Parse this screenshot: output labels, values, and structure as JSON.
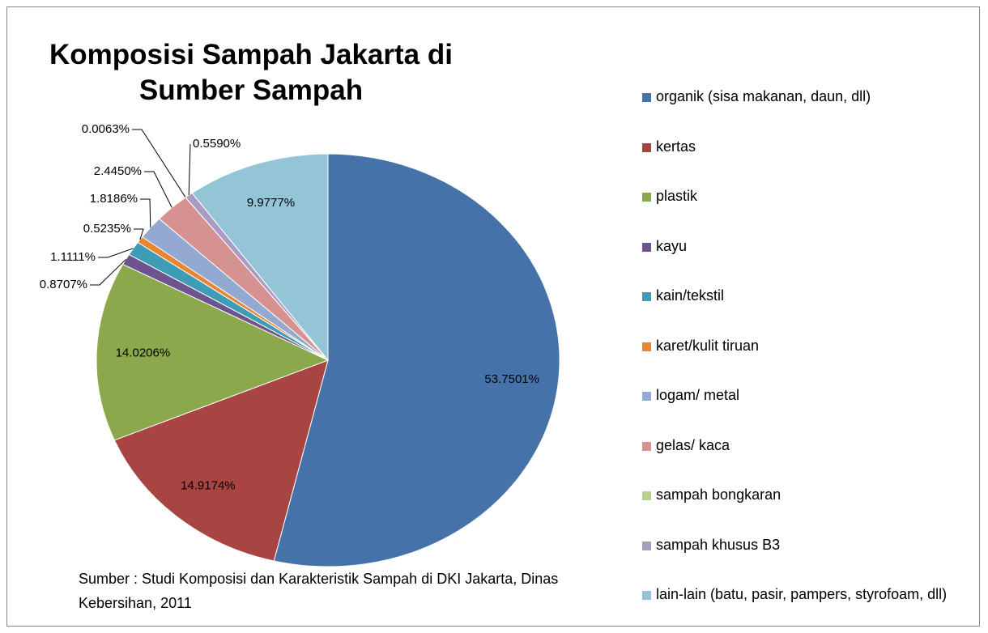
{
  "chart_data": {
    "type": "pie",
    "title": "Komposisi Sampah Jakarta di Sumber Sampah",
    "note": "Sumber : Studi Komposisi dan Karakteristik Sampah di DKI Jakarta, Dinas Kebersihan, 2011",
    "categories": [
      "organik (sisa makanan, daun, dll)",
      "kertas",
      "plastik",
      "kayu",
      "kain/tekstil",
      "karet/kulit tiruan",
      "logam/ metal",
      "gelas/ kaca",
      "sampah bongkaran",
      "sampah khusus B3",
      "lain-lain (batu, pasir, pampers, styrofoam, dll)"
    ],
    "values": [
      53.7501,
      14.9174,
      14.0206,
      0.8707,
      1.1111,
      0.5235,
      1.8186,
      2.445,
      0.0063,
      0.559,
      9.9777
    ],
    "value_labels": [
      "53.7501%",
      "14.9174%",
      "14.0206%",
      "0.8707%",
      "1.1111%",
      "0.5235%",
      "1.8186%",
      "2.4450%",
      "0.0063%",
      "0.5590%",
      "9.9777%"
    ],
    "colors": [
      "#4572a8",
      "#a84442",
      "#8ba84c",
      "#6e548e",
      "#3e9db5",
      "#e8852f",
      "#93a9d2",
      "#d69291",
      "#b9d08d",
      "#a99bc2",
      "#93c5d7"
    ],
    "legend": "right"
  }
}
